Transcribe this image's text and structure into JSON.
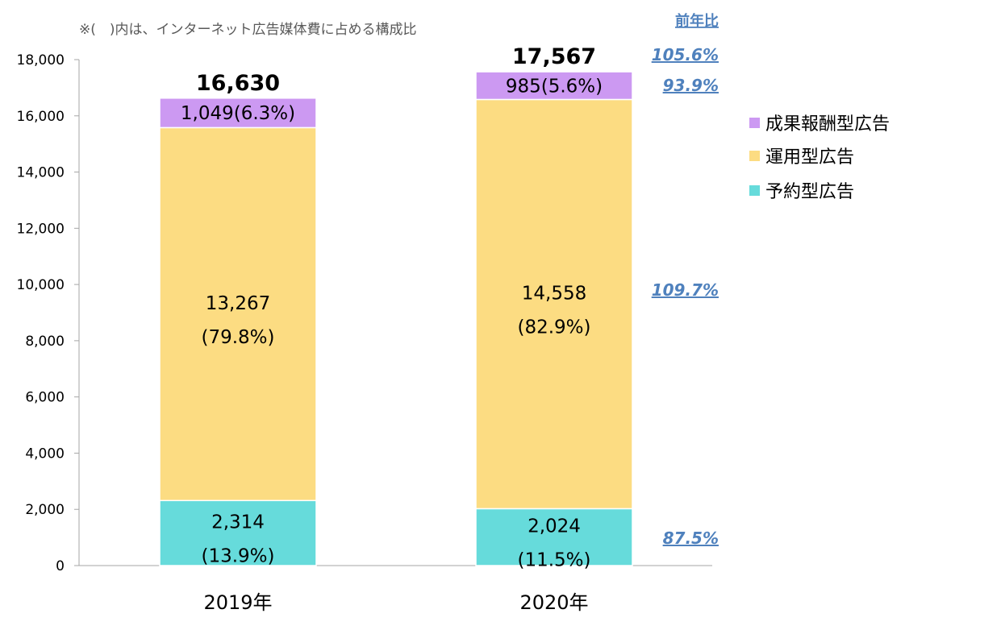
{
  "note": "※(　)内は、インターネット広告媒体費に占める構成比",
  "yoy_header": "前年比",
  "chart_data": {
    "type": "bar",
    "stacked": true,
    "categories": [
      "2019年",
      "2020年"
    ],
    "ylim": [
      0,
      18000
    ],
    "yticks": [
      "0",
      "2,000",
      "4,000",
      "6,000",
      "8,000",
      "10,000",
      "12,000",
      "14,000",
      "16,000",
      "18,000"
    ],
    "grid": false,
    "legend_position": "right",
    "totals": [
      16630,
      17567
    ],
    "total_labels": [
      "16,630",
      "17,567"
    ],
    "series": [
      {
        "name": "予約型広告",
        "color": "#66dbdb",
        "values": [
          2314,
          2024
        ],
        "labels": [
          "2,314",
          "2,024"
        ],
        "shares": [
          "(13.9%)",
          "(11.5%)"
        ],
        "yoy": "87.5%"
      },
      {
        "name": "運用型広告",
        "color": "#fcdc82",
        "values": [
          13267,
          14558
        ],
        "labels": [
          "13,267",
          "14,558"
        ],
        "shares": [
          "(79.8%)",
          "(82.9%)"
        ],
        "yoy": "109.7%"
      },
      {
        "name": "成果報酬型広告",
        "color": "#cc99f2",
        "values": [
          1049,
          985
        ],
        "labels": [
          "1,049(6.3%)",
          "985(5.6%)"
        ],
        "shares": [
          "",
          ""
        ],
        "yoy": "93.9%"
      }
    ],
    "total_yoy": "105.6%"
  }
}
